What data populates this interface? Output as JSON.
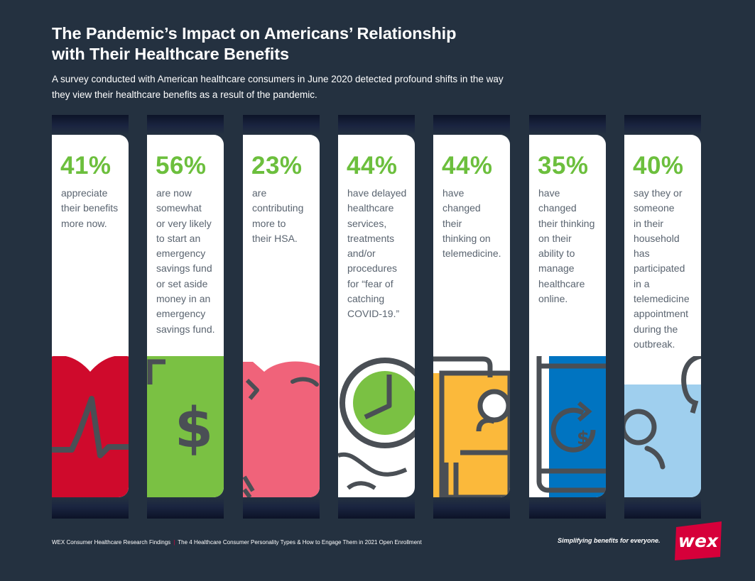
{
  "header": {
    "title_line1": "The Pandemic’s Impact on Americans’ Relationship",
    "title_line2": "with Their Healthcare Benefits",
    "subtitle_line1": "A survey conducted with American healthcare consumers in June 2020 detected profound shifts in the way",
    "subtitle_line2": "they view their healthcare benefits as a result of the pandemic."
  },
  "colors": {
    "background": "#243140",
    "percent_green": "#6cbf3d",
    "heart_red": "#cf0a2c",
    "dollar_green": "#7ac143",
    "piggy_pink": "#f0637a",
    "clock_green": "#7ac143",
    "mobile_orange": "#fbb93b",
    "tablet_blue": "#0074c1",
    "telemed_lightblue": "#9fcfee",
    "icon_outline": "#4a4f55",
    "logo_red": "#d6003a"
  },
  "stats": [
    {
      "percent": "41%",
      "lines": [
        "appreciate",
        "their benefits",
        "more now."
      ],
      "icon": "heart-pulse-icon"
    },
    {
      "percent": "56%",
      "lines": [
        "are now",
        "somewhat",
        "or very likely",
        "to start an",
        "emergency",
        "savings fund",
        "or set aside",
        "money in an",
        "emergency",
        "savings fund."
      ],
      "icon": "dollar-document-icon"
    },
    {
      "percent": "23%",
      "lines": [
        "are",
        "contributing",
        "more to",
        "their HSA."
      ],
      "icon": "piggy-bank-icon"
    },
    {
      "percent": "44%",
      "lines": [
        "have delayed",
        "healthcare",
        "services,",
        "treatments",
        "and/or",
        "procedures",
        "for “fear of",
        "catching",
        "COVID-19.”"
      ],
      "icon": "clock-icon"
    },
    {
      "percent": "44%",
      "lines": [
        "have",
        "changed",
        "their",
        "thinking on",
        "telemedicine."
      ],
      "icon": "telemedicine-phone-icon"
    },
    {
      "percent": "35%",
      "lines": [
        "have",
        "changed",
        "their thinking",
        "on their",
        "ability to",
        "manage",
        "healthcare",
        "online."
      ],
      "icon": "online-payment-tablet-icon"
    },
    {
      "percent": "40%",
      "lines": [
        "say they or",
        "someone",
        "in their",
        "household",
        "has",
        "participated",
        "in a",
        "telemedicine",
        "appointment",
        "during the",
        "outbreak."
      ],
      "icon": "telemedicine-chat-icon"
    }
  ],
  "footer": {
    "left_text": "WEX Consumer Healthcare Research Findings",
    "separator": "|",
    "right_text": "The 4 Healthcare Consumer Personality Types & How to Engage Them in 2021 Open Enrollment",
    "tagline": "Simplifying benefits for everyone.",
    "logo_text": "wex"
  }
}
